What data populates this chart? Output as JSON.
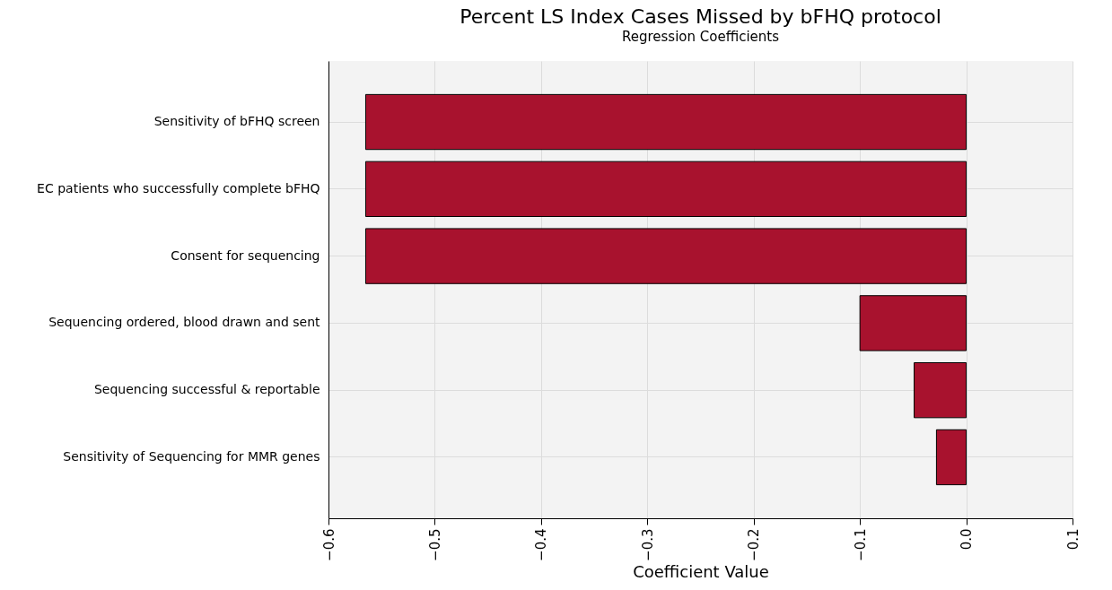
{
  "chart_data": {
    "type": "bar",
    "orientation": "horizontal",
    "title": "Percent LS Index Cases Missed by bFHQ protocol",
    "subtitle": "Regression Coefficients",
    "xlabel": "Coefficient Value",
    "categories": [
      "Sensitivity of bFHQ screen",
      "EC patients who successfully complete bFHQ",
      "Consent for sequencing",
      "Sequencing ordered, blood drawn and sent",
      "Sequencing successful & reportable",
      "Sensitivity of Sequencing for MMR genes"
    ],
    "values": [
      -0.565,
      -0.565,
      -0.565,
      -0.1,
      -0.049,
      -0.028
    ],
    "color": "#a8122e",
    "xlim": [
      -0.6,
      0.1
    ],
    "xticks": [
      -0.6,
      -0.5,
      -0.4,
      -0.3,
      -0.2,
      -0.1,
      {
        "value": 0,
        "label": "0.0"
      },
      0.1
    ],
    "grid": true
  }
}
